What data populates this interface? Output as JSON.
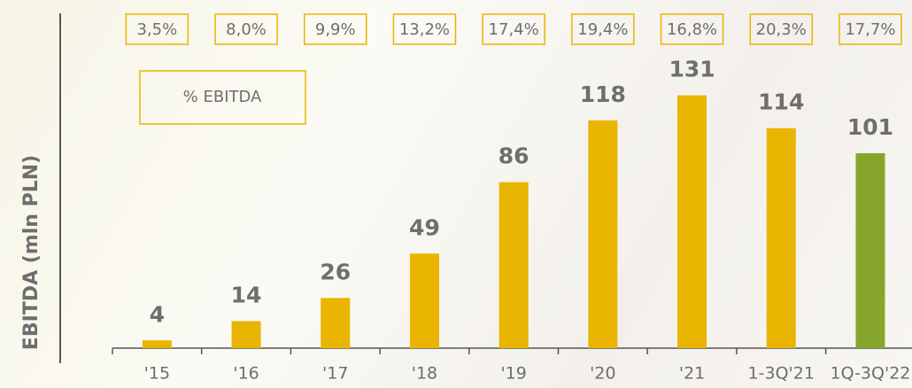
{
  "chart_data": {
    "type": "bar",
    "y_axis_label": "EBITDA (mln PLN)",
    "categories": [
      "'15",
      "'16",
      "'17",
      "'18",
      "'19",
      "'20",
      "'21",
      "1-3Q'21",
      "1Q-3Q'22"
    ],
    "values": [
      4,
      14,
      26,
      49,
      86,
      118,
      131,
      114,
      101
    ],
    "colors": [
      "#e9b500",
      "#e9b500",
      "#e9b500",
      "#e9b500",
      "#e9b500",
      "#e9b500",
      "#e9b500",
      "#e9b500",
      "#86a62b"
    ],
    "ylim": [
      0,
      140
    ],
    "margin": {
      "name": "% EBITDA",
      "values": [
        3.5,
        8.0,
        9.9,
        13.2,
        17.4,
        19.4,
        16.8,
        20.3,
        17.7
      ],
      "value_labels": [
        "3,5%",
        "8,0%",
        "9,9%",
        "13,2%",
        "17,4%",
        "19,4%",
        "16,8%",
        "20,3%",
        "17,7%"
      ],
      "color": "#e9b500"
    }
  }
}
